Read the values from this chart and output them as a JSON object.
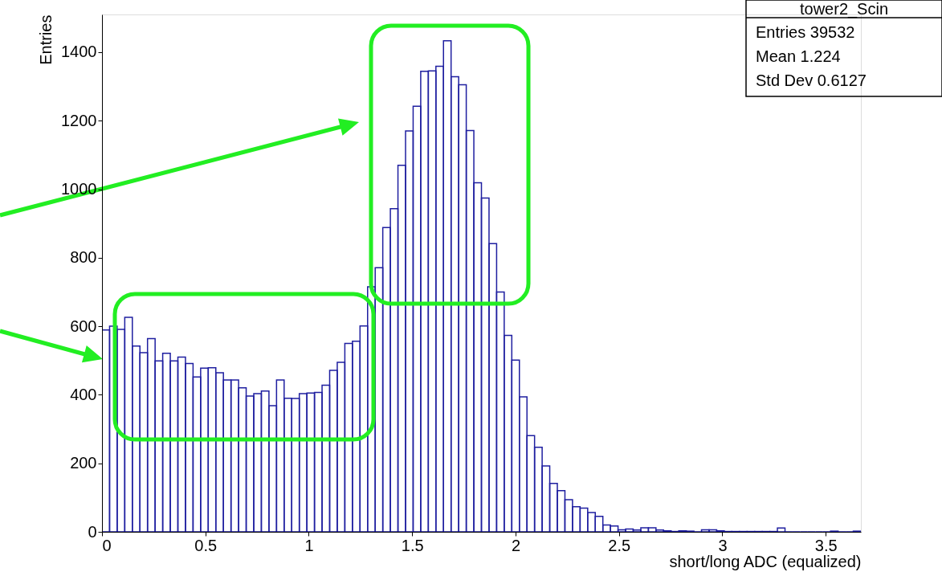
{
  "chart_data": {
    "type": "histogram",
    "xlabel": "short/long ADC (equalized)",
    "ylabel": "Entries",
    "bins": [
      0,
      0.0367,
      0.0734,
      0.1101,
      0.1468,
      0.1835,
      0.2202,
      0.2569,
      0.2936,
      0.3303,
      0.367,
      0.4037,
      0.4404,
      0.4771,
      0.5138,
      0.5505,
      0.5872,
      0.6239,
      0.6606,
      0.6973,
      0.734,
      0.7707,
      0.8074,
      0.8441,
      0.8808,
      0.9175,
      0.9542,
      0.9909,
      1.0276,
      1.0643,
      1.101,
      1.1377,
      1.1744,
      1.2111,
      1.2478,
      1.2845,
      1.3212,
      1.3579,
      1.3946,
      1.4313,
      1.468,
      1.5047,
      1.5414,
      1.5781,
      1.6148,
      1.6515,
      1.6882,
      1.7249,
      1.7616,
      1.7983,
      1.835,
      1.8717,
      1.9084,
      1.9451,
      1.9818,
      2.0185,
      2.0552,
      2.0919,
      2.1286,
      2.1653,
      2.202,
      2.2387,
      2.2754,
      2.3121,
      2.3488,
      2.3855,
      2.4222,
      2.4589,
      2.4956,
      2.5323,
      2.569,
      2.6057,
      2.6424,
      2.6791,
      2.7158,
      2.7525,
      2.7892,
      2.8259,
      2.8626,
      2.8993,
      2.936,
      2.9727,
      3.0094,
      3.0461,
      3.0828,
      3.1195,
      3.1562,
      3.1929,
      3.2296,
      3.2663,
      3.303,
      3.3397,
      3.3764,
      3.4131,
      3.4498,
      3.4865,
      3.5232,
      3.5599,
      3.5966,
      3.6333,
      3.67
    ],
    "values": [
      589,
      600,
      591,
      626,
      542,
      523,
      564,
      499,
      521,
      499,
      510,
      491,
      452,
      478,
      479,
      464,
      443,
      443,
      420,
      396,
      403,
      411,
      368,
      443,
      390,
      389,
      403,
      405,
      407,
      428,
      471,
      495,
      550,
      556,
      601,
      715,
      771,
      888,
      943,
      1070,
      1170,
      1242,
      1344,
      1345,
      1359,
      1433,
      1328,
      1305,
      1171,
      1019,
      974,
      841,
      700,
      573,
      501,
      394,
      281,
      247,
      192,
      141,
      120,
      94,
      73,
      69,
      56,
      45,
      20,
      17,
      6,
      8,
      5,
      12,
      12,
      5,
      3,
      1,
      3,
      2,
      0,
      6,
      6,
      3,
      1,
      1,
      1,
      1,
      1,
      1,
      1,
      11,
      0,
      0,
      0,
      0,
      0,
      0,
      2,
      0,
      0,
      2
    ],
    "color": "#1f1fa0",
    "xlim": [
      0,
      3.67
    ],
    "xticks": [
      0,
      0.5,
      1,
      1.5,
      2,
      2.5,
      3,
      3.5
    ],
    "ylim": [
      0,
      1510
    ],
    "yticks": [
      0,
      200,
      400,
      600,
      800,
      1000,
      1200,
      1400
    ],
    "grid": false,
    "annotations": [
      "tower2_Scin",
      "Entries 39532",
      "Mean 1.224",
      "Std Dev 0.6127"
    ]
  }
}
